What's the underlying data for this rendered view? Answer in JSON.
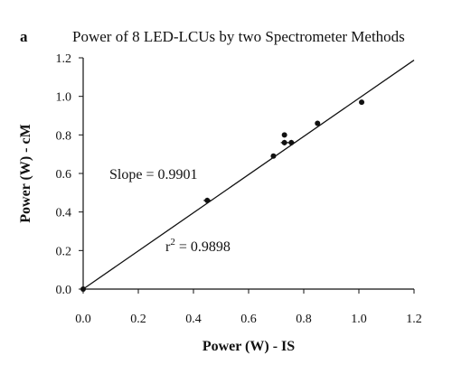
{
  "chart_data": {
    "type": "scatter",
    "panel_label": "a",
    "title": "Power of 8 LED-LCUs by two Spectrometer Methods",
    "xlabel": "Power (W) - IS",
    "ylabel": "Power (W) - cM",
    "xlim": [
      0,
      1.2
    ],
    "ylim": [
      0,
      1.2
    ],
    "x_ticks": [
      0,
      0.2,
      0.4,
      0.6,
      0.8,
      1.0,
      1.2
    ],
    "x_tick_labels": [
      "0.0",
      "0.2",
      "0.4",
      "0.6",
      "0.8",
      "1.0",
      "1.2"
    ],
    "y_ticks": [
      0,
      0.2,
      0.4,
      0.6,
      0.8,
      1.0,
      1.2
    ],
    "y_tick_labels": [
      "0.0",
      "0.2",
      "0.4",
      "0.6",
      "0.8",
      "1.0",
      "1.2"
    ],
    "grid": false,
    "legend": "none",
    "points": [
      {
        "x": 0.0,
        "y": 0.0,
        "error_bar": false
      },
      {
        "x": 0.45,
        "y": 0.46,
        "error_bar": true
      },
      {
        "x": 0.69,
        "y": 0.69,
        "error_bar": false
      },
      {
        "x": 0.73,
        "y": 0.8,
        "error_bar": false
      },
      {
        "x": 0.73,
        "y": 0.76,
        "error_bar": true
      },
      {
        "x": 0.755,
        "y": 0.76,
        "error_bar": true
      },
      {
        "x": 0.85,
        "y": 0.86,
        "error_bar": false
      },
      {
        "x": 1.01,
        "y": 0.97,
        "error_bar": false
      }
    ],
    "fit_line": {
      "slope": 0.9901,
      "intercept": 0.0,
      "x_range": [
        0,
        1.2
      ]
    },
    "annotations": {
      "slope_text": "Slope = 0.9901",
      "r2_prefix": "r",
      "r2_exponent": "2",
      "r2_value": " = 0.9898"
    },
    "colors": {
      "marker": "#111111",
      "line": "#111111",
      "axis": "#111111"
    }
  }
}
